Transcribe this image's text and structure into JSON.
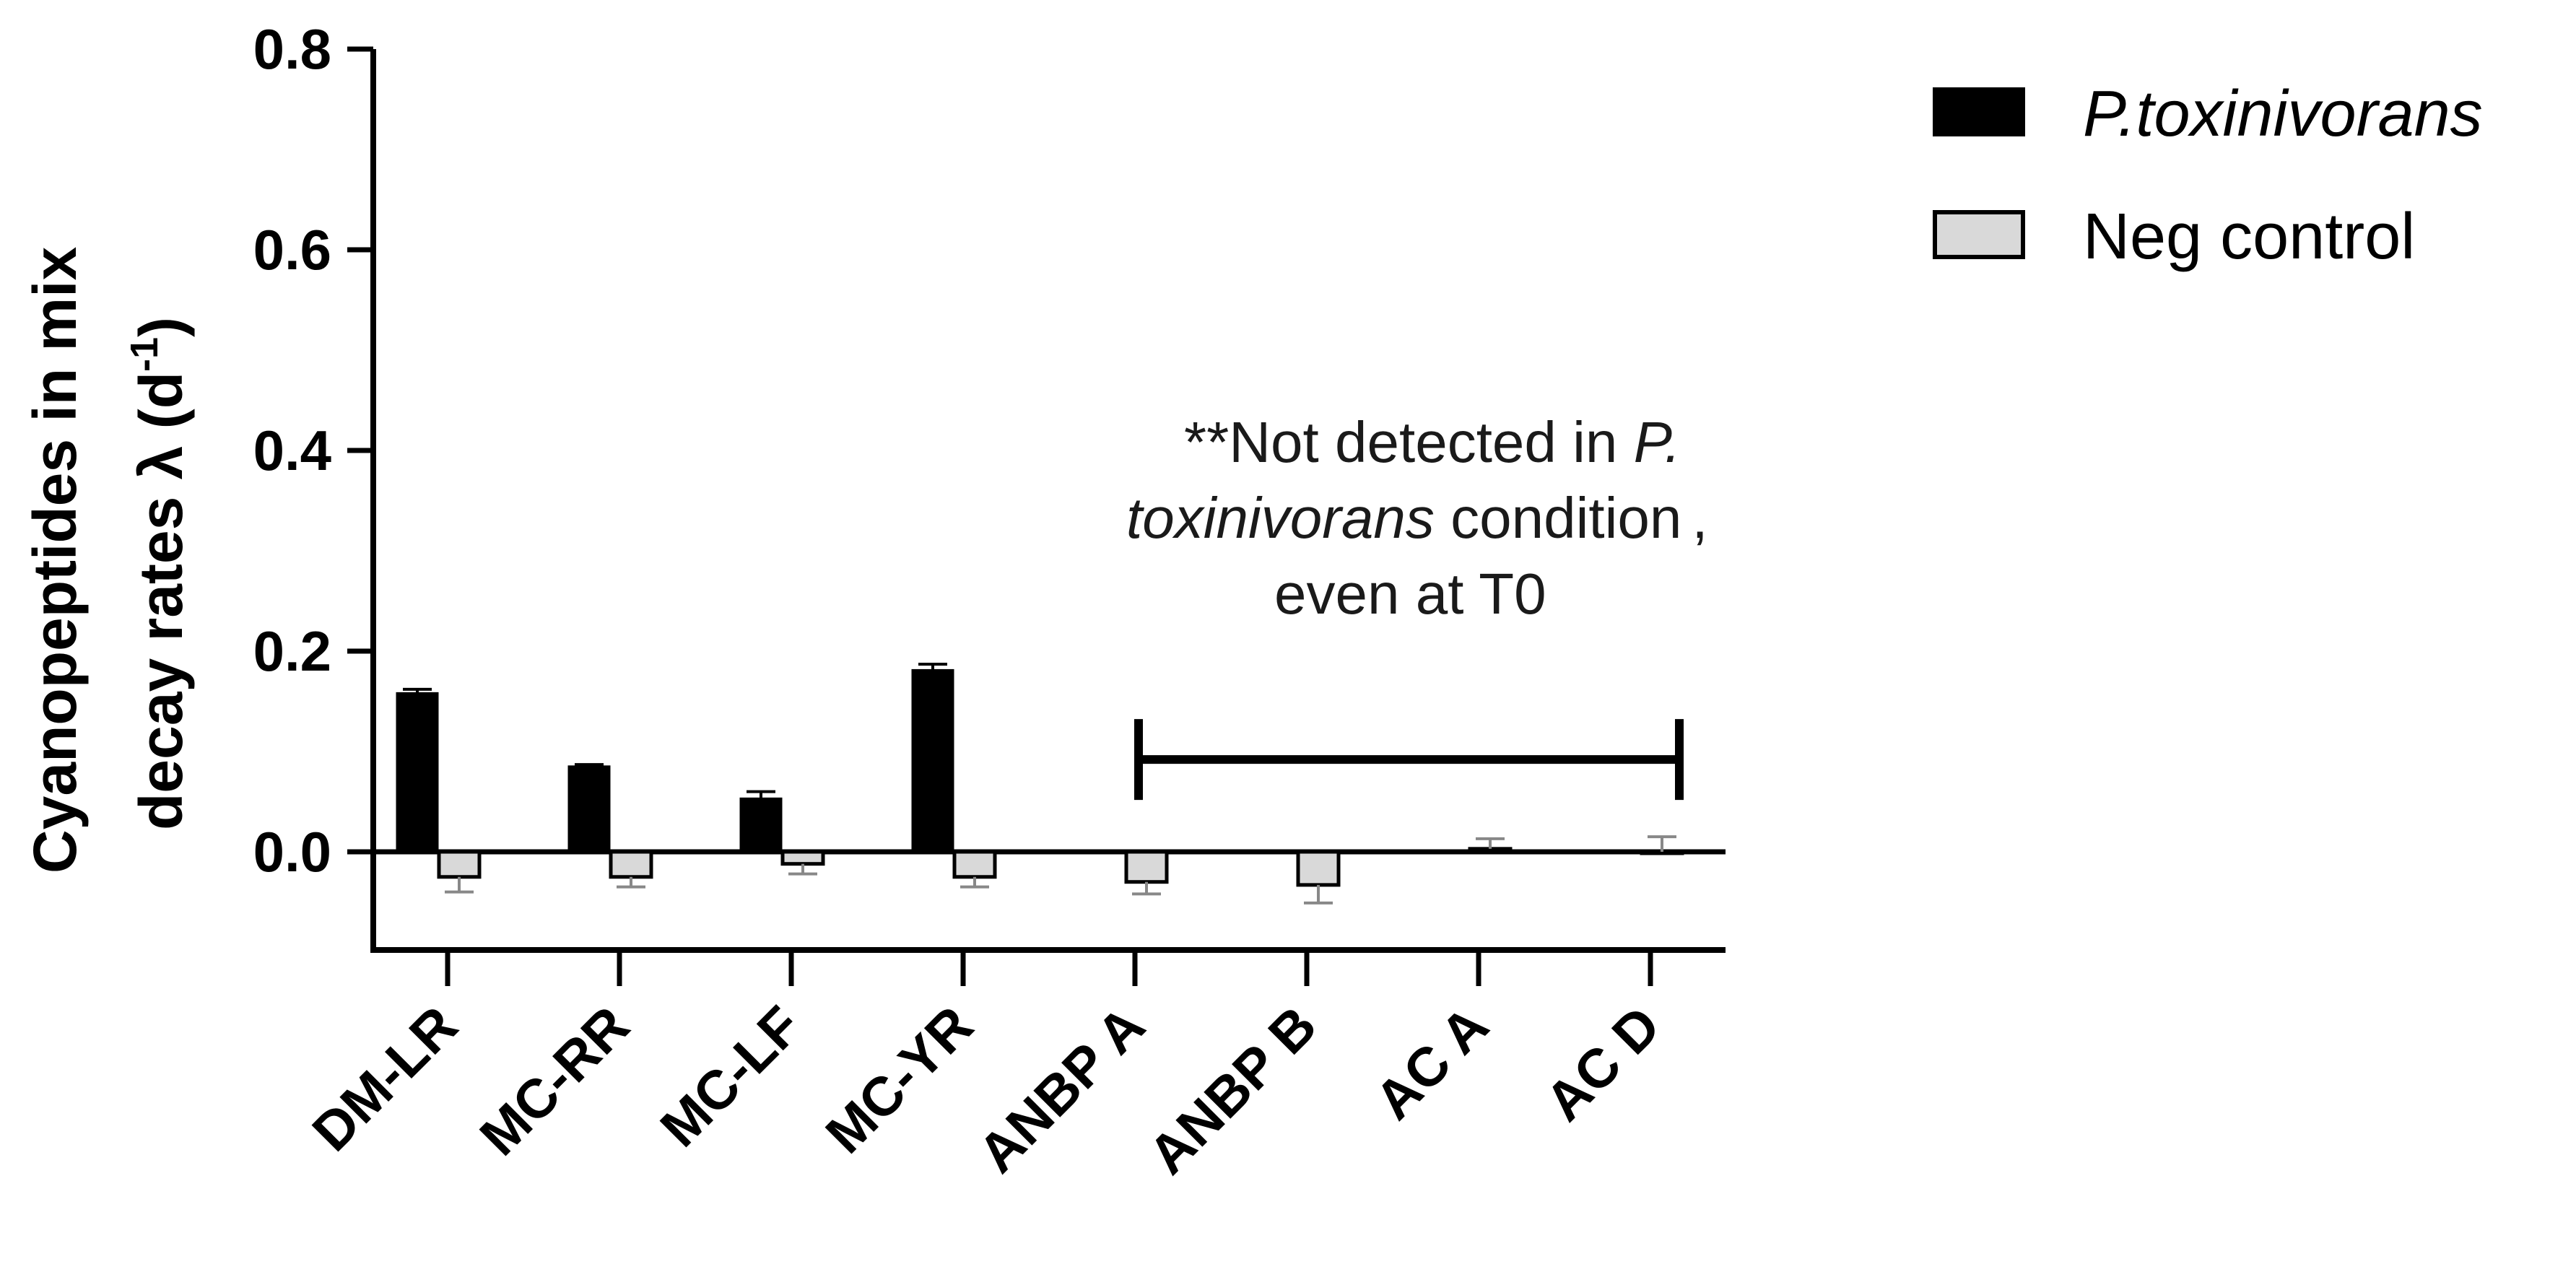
{
  "chart_data": {
    "type": "bar",
    "ylabel_line1": "Cyanopeptides in mix",
    "ylabel_line2": "decay rates λ (d",
    "ylabel_sup": "-1",
    "ylabel_close": ")",
    "ylim": [
      -0.1,
      0.8
    ],
    "yticks": [
      0.0,
      0.2,
      0.4,
      0.6,
      0.8
    ],
    "ytick_labels": [
      "0.0",
      "0.2",
      "0.4",
      "0.6",
      "0.8"
    ],
    "categories": [
      "DM-LR",
      "MC-RR",
      "MC-LF",
      "MC-YR",
      "ANBP A",
      "ANBP B",
      "AC A",
      "AC D"
    ],
    "series": [
      {
        "name": "P.toxinivorans",
        "color": "#000000",
        "values": [
          0.158,
          0.085,
          0.053,
          0.181,
          null,
          null,
          null,
          null
        ],
        "errors": [
          0.004,
          0.002,
          0.007,
          0.006,
          null,
          null,
          null,
          null
        ]
      },
      {
        "name": "Neg control",
        "color": "#d9d9d9",
        "values": [
          -0.025,
          -0.025,
          -0.012,
          -0.025,
          -0.03,
          -0.033,
          0.003,
          0.0
        ],
        "errors": [
          0.015,
          0.01,
          0.01,
          0.01,
          0.012,
          0.018,
          0.01,
          0.015
        ]
      }
    ],
    "legend_position": "top-right",
    "annotation": {
      "prefix": "**Not detected in ",
      "italic_a": "P.",
      "italic_b": "toxinivorans",
      "rest_b": " condition",
      "comma": ",",
      "line3": "even at T0",
      "bracket_from": "ANBP A",
      "bracket_to": "AC D",
      "bracket_y": 0.092
    }
  }
}
